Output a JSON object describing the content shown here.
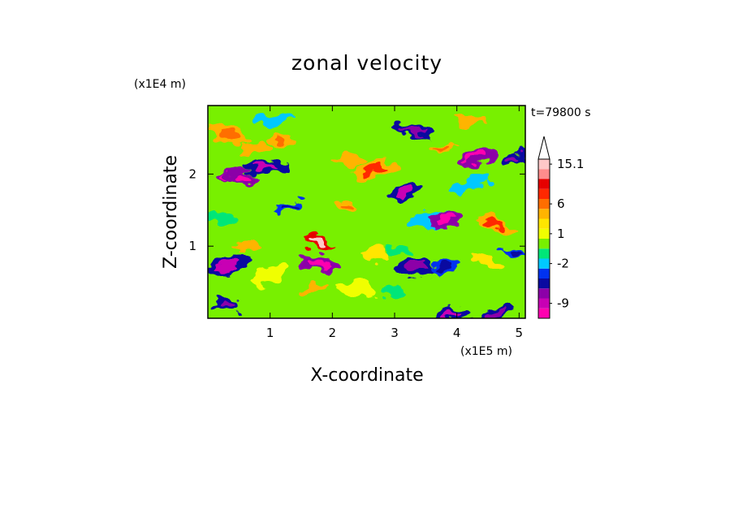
{
  "chart_data": {
    "type": "heatmap",
    "title": "zonal velocity",
    "xlabel": "X-coordinate",
    "ylabel": "Z-coordinate",
    "x_unit": "(x1E5 m)",
    "y_unit": "(x1E4 m)",
    "time_label": "t=79800 s",
    "xlim": [
      0.0,
      5.1
    ],
    "ylim": [
      0.0,
      2.95
    ],
    "xticks": [
      1,
      2,
      3,
      4,
      5
    ],
    "yticks": [
      1,
      2
    ],
    "colorbar": {
      "levels": [
        -12,
        -9,
        -7,
        -5,
        -3.5,
        -2,
        -1,
        0,
        1,
        2,
        3,
        6,
        8,
        10,
        12,
        15.1
      ],
      "colors": [
        "#ff00b0",
        "#c800b4",
        "#8c00a8",
        "#0a0aa0",
        "#0032f0",
        "#00c8ff",
        "#00e678",
        "#78f000",
        "#f0ff00",
        "#ffe600",
        "#ffb400",
        "#ff6e00",
        "#ff2800",
        "#e60000",
        "#ff8c8c",
        "#ffc8c8"
      ],
      "tick_labels": [
        "15.1",
        "6",
        "1",
        "-2",
        "-9"
      ],
      "tick_values": [
        15.1,
        6,
        1,
        -2,
        -9
      ],
      "extends_max": true
    },
    "features": [
      {
        "x": 0.3,
        "z": 2.0,
        "value": -7
      },
      {
        "x": 0.55,
        "z": 1.95,
        "value": -6
      },
      {
        "x": 0.95,
        "z": 2.1,
        "value": -5
      },
      {
        "x": 0.75,
        "z": 2.35,
        "value": 3
      },
      {
        "x": 0.35,
        "z": 2.55,
        "value": 4
      },
      {
        "x": 1.2,
        "z": 2.45,
        "value": 4
      },
      {
        "x": 1.05,
        "z": 2.75,
        "value": -2
      },
      {
        "x": 1.3,
        "z": 1.55,
        "value": -3
      },
      {
        "x": 1.75,
        "z": 1.05,
        "value": 10
      },
      {
        "x": 1.8,
        "z": 0.75,
        "value": -6
      },
      {
        "x": 1.7,
        "z": 0.4,
        "value": 3
      },
      {
        "x": 0.35,
        "z": 0.75,
        "value": -5
      },
      {
        "x": 0.3,
        "z": 0.2,
        "value": -4
      },
      {
        "x": 0.15,
        "z": 1.4,
        "value": -1
      },
      {
        "x": 0.6,
        "z": 1.0,
        "value": 3
      },
      {
        "x": 1.0,
        "z": 0.6,
        "value": 1
      },
      {
        "x": 2.25,
        "z": 1.55,
        "value": 4
      },
      {
        "x": 2.3,
        "z": 2.2,
        "value": 3
      },
      {
        "x": 2.7,
        "z": 2.05,
        "value": 5
      },
      {
        "x": 3.15,
        "z": 1.75,
        "value": -5
      },
      {
        "x": 3.3,
        "z": 2.6,
        "value": -4
      },
      {
        "x": 3.8,
        "z": 2.35,
        "value": 4
      },
      {
        "x": 4.3,
        "z": 2.25,
        "value": -6
      },
      {
        "x": 4.9,
        "z": 2.2,
        "value": -4
      },
      {
        "x": 4.2,
        "z": 2.75,
        "value": 3
      },
      {
        "x": 3.6,
        "z": 1.35,
        "value": -2
      },
      {
        "x": 3.8,
        "z": 1.35,
        "value": -6
      },
      {
        "x": 4.6,
        "z": 1.3,
        "value": 5
      },
      {
        "x": 3.1,
        "z": 0.95,
        "value": -1
      },
      {
        "x": 3.35,
        "z": 0.7,
        "value": -4
      },
      {
        "x": 3.8,
        "z": 0.7,
        "value": -3
      },
      {
        "x": 4.5,
        "z": 0.8,
        "value": 2
      },
      {
        "x": 3.0,
        "z": 0.35,
        "value": -1
      },
      {
        "x": 3.9,
        "z": 0.05,
        "value": -5
      },
      {
        "x": 4.6,
        "z": 0.05,
        "value": -4
      },
      {
        "x": 4.95,
        "z": 0.9,
        "value": -3
      },
      {
        "x": 2.4,
        "z": 0.4,
        "value": 1
      },
      {
        "x": 2.7,
        "z": 0.9,
        "value": 2
      },
      {
        "x": 4.2,
        "z": 1.85,
        "value": -2
      }
    ]
  }
}
